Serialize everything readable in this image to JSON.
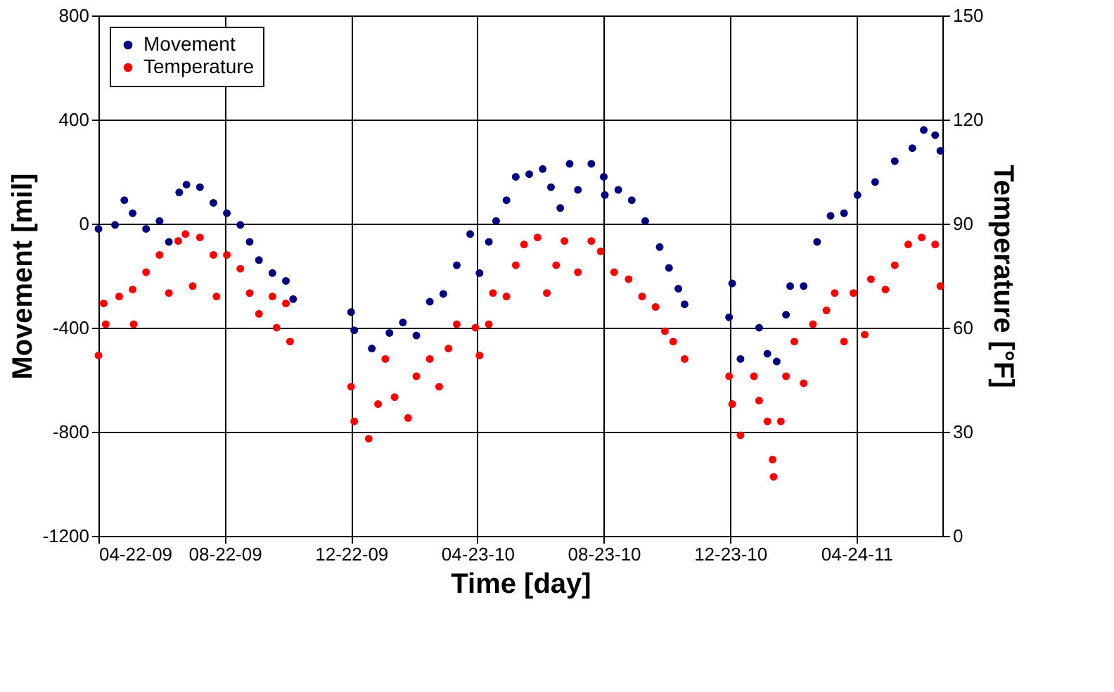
{
  "chart_data": {
    "type": "scatter",
    "xlabel": "Time [day]",
    "ylabel": "Movement [mil]",
    "y2label": "Temperature [°F]",
    "xlim": [
      "2009-04-22",
      "2011-07-16"
    ],
    "xticks": [
      {
        "value": "2009-04-22",
        "label": "04-22-09"
      },
      {
        "value": "2009-08-22",
        "label": "08-22-09"
      },
      {
        "value": "2009-12-22",
        "label": "12-22-09"
      },
      {
        "value": "2010-04-23",
        "label": "04-23-10"
      },
      {
        "value": "2010-08-23",
        "label": "08-23-10"
      },
      {
        "value": "2010-12-23",
        "label": "12-23-10"
      },
      {
        "value": "2011-04-24",
        "label": "04-24-11"
      }
    ],
    "ylim": [
      -1200,
      800
    ],
    "yticks": [
      -1200,
      -800,
      -400,
      0,
      400,
      800
    ],
    "y2lim": [
      0,
      150
    ],
    "y2ticks": [
      0,
      30,
      60,
      90,
      120,
      150
    ],
    "grid": true,
    "legend": "top left",
    "marker": "circle",
    "series": [
      {
        "name": "Movement",
        "color": "#000080",
        "x": [
          "2009-04-22",
          "2009-05-08",
          "2009-05-17",
          "2009-05-25",
          "2009-06-07",
          "2009-06-20",
          "2009-06-29",
          "2009-07-09",
          "2009-07-16",
          "2009-07-29",
          "2009-08-11",
          "2009-08-24",
          "2009-09-06",
          "2009-09-15",
          "2009-09-24",
          "2009-10-07",
          "2009-10-20",
          "2009-10-27",
          "2009-12-22",
          "2009-12-25",
          "2010-01-11",
          "2010-01-28",
          "2010-02-10",
          "2010-02-23",
          "2010-03-08",
          "2010-03-21",
          "2010-04-03",
          "2010-04-16",
          "2010-04-25",
          "2010-05-04",
          "2010-05-11",
          "2010-05-21",
          "2010-05-30",
          "2010-06-12",
          "2010-06-25",
          "2010-07-03",
          "2010-07-12",
          "2010-07-21",
          "2010-07-29",
          "2010-08-11",
          "2010-08-23",
          "2010-08-24",
          "2010-09-06",
          "2010-09-19",
          "2010-10-02",
          "2010-10-16",
          "2010-10-25",
          "2010-11-03",
          "2010-11-09",
          "2010-12-22",
          "2010-12-25",
          "2011-01-02",
          "2011-01-20",
          "2011-01-28",
          "2011-02-06",
          "2011-02-15",
          "2011-02-19",
          "2011-03-04",
          "2011-03-17",
          "2011-03-30",
          "2011-04-12",
          "2011-04-25",
          "2011-05-12",
          "2011-05-31",
          "2011-06-17",
          "2011-06-28",
          "2011-07-09",
          "2011-07-14"
        ],
        "values": [
          -20,
          -5,
          90,
          40,
          -20,
          10,
          -70,
          120,
          150,
          140,
          80,
          40,
          -5,
          -70,
          -140,
          -190,
          -220,
          -290,
          -340,
          -410,
          -480,
          -420,
          -380,
          -430,
          -300,
          -270,
          -160,
          -40,
          -190,
          -70,
          10,
          90,
          180,
          190,
          210,
          140,
          60,
          230,
          130,
          230,
          180,
          110,
          130,
          90,
          10,
          -90,
          -170,
          -250,
          -310,
          -360,
          -230,
          -520,
          -400,
          -500,
          -530,
          -350,
          -240,
          -240,
          -70,
          30,
          40,
          110,
          160,
          240,
          290,
          360,
          340,
          280
        ]
      },
      {
        "name": "Temperature",
        "color": "#ff0000",
        "axis": "y2",
        "x": [
          "2009-04-22",
          "2009-04-27",
          "2009-04-29",
          "2009-05-12",
          "2009-05-25",
          "2009-05-26",
          "2009-06-07",
          "2009-06-20",
          "2009-06-29",
          "2009-07-08",
          "2009-07-15",
          "2009-07-22",
          "2009-07-29",
          "2009-08-11",
          "2009-08-14",
          "2009-08-24",
          "2009-09-06",
          "2009-09-15",
          "2009-09-24",
          "2009-10-07",
          "2009-10-11",
          "2009-10-20",
          "2009-10-24",
          "2009-12-22",
          "2009-12-25",
          "2010-01-08",
          "2010-01-17",
          "2010-01-24",
          "2010-02-02",
          "2010-02-15",
          "2010-02-23",
          "2010-03-08",
          "2010-03-17",
          "2010-03-26",
          "2010-04-03",
          "2010-04-21",
          "2010-04-25",
          "2010-05-04",
          "2010-05-08",
          "2010-05-21",
          "2010-05-30",
          "2010-06-07",
          "2010-06-20",
          "2010-06-29",
          "2010-07-08",
          "2010-07-16",
          "2010-07-29",
          "2010-08-11",
          "2010-08-20",
          "2010-09-02",
          "2010-09-16",
          "2010-09-29",
          "2010-10-12",
          "2010-10-21",
          "2010-10-29",
          "2010-11-09",
          "2010-12-22",
          "2010-12-25",
          "2011-01-02",
          "2011-01-15",
          "2011-01-20",
          "2011-01-28",
          "2011-02-02",
          "2011-02-03",
          "2011-02-10",
          "2011-02-15",
          "2011-02-23",
          "2011-03-04",
          "2011-03-13",
          "2011-03-26",
          "2011-04-03",
          "2011-04-12",
          "2011-04-21",
          "2011-05-02",
          "2011-05-08",
          "2011-05-22",
          "2011-05-31",
          "2011-06-13",
          "2011-06-26",
          "2011-07-09",
          "2011-07-14"
        ],
        "values": [
          52,
          67,
          61,
          69,
          71,
          61,
          76,
          81,
          70,
          85,
          87,
          72,
          86,
          81,
          69,
          81,
          77,
          70,
          64,
          69,
          60,
          67,
          56,
          43,
          33,
          28,
          38,
          51,
          40,
          34,
          46,
          51,
          43,
          54,
          61,
          60,
          52,
          61,
          70,
          69,
          78,
          84,
          86,
          70,
          78,
          85,
          76,
          85,
          82,
          76,
          74,
          69,
          66,
          59,
          56,
          51,
          46,
          38,
          29,
          46,
          39,
          33,
          22,
          17,
          33,
          46,
          56,
          44,
          61,
          65,
          70,
          56,
          70,
          58,
          74,
          71,
          78,
          84,
          86,
          84,
          72
        ]
      }
    ]
  }
}
